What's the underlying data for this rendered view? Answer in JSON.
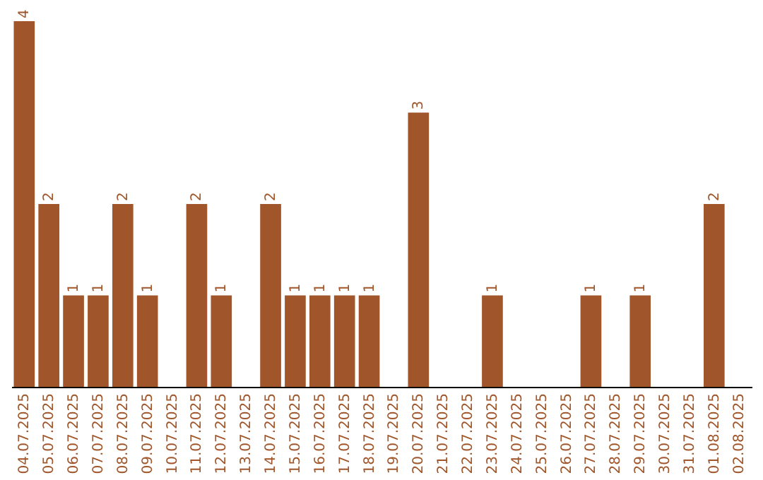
{
  "chart_data": {
    "type": "bar",
    "color": "#a0562a",
    "categories": [
      "04.07.2025",
      "05.07.2025",
      "06.07.2025",
      "07.07.2025",
      "08.07.2025",
      "09.07.2025",
      "10.07.2025",
      "11.07.2025",
      "12.07.2025",
      "13.07.2025",
      "14.07.2025",
      "15.07.2025",
      "16.07.2025",
      "17.07.2025",
      "18.07.2025",
      "19.07.2025",
      "20.07.2025",
      "21.07.2025",
      "22.07.2025",
      "23.07.2025",
      "24.07.2025",
      "25.07.2025",
      "26.07.2025",
      "27.07.2025",
      "28.07.2025",
      "29.07.2025",
      "30.07.2025",
      "31.07.2025",
      "01.08.2025",
      "02.08.2025"
    ],
    "values": [
      4,
      2,
      1,
      1,
      2,
      1,
      0,
      2,
      1,
      0,
      2,
      1,
      1,
      1,
      1,
      0,
      3,
      0,
      0,
      1,
      0,
      0,
      0,
      1,
      0,
      1,
      0,
      0,
      2,
      0
    ],
    "value_labels": [
      "4",
      "2",
      "1",
      "1",
      "2",
      "1",
      null,
      "2",
      "1",
      null,
      "2",
      "1",
      "1",
      "1",
      "1",
      null,
      "3",
      null,
      null,
      "1",
      null,
      null,
      null,
      "1",
      null,
      "1",
      null,
      null,
      "2",
      null
    ],
    "tick_labels": "x",
    "grid": false
  }
}
